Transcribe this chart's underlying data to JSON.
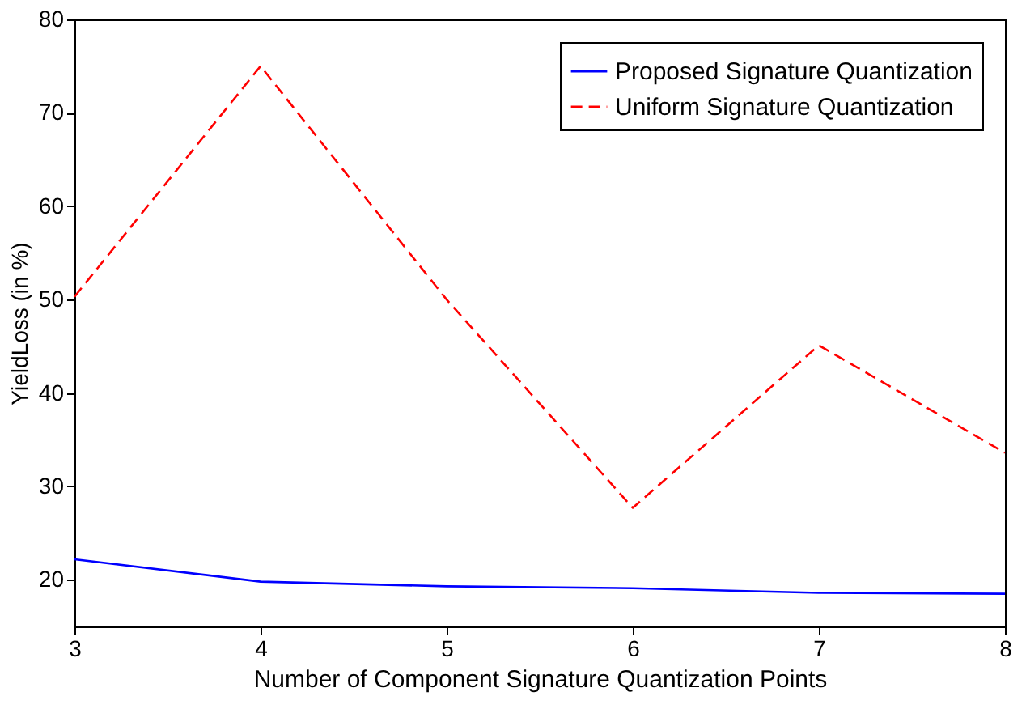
{
  "chart_data": {
    "type": "line",
    "xlabel": "Number of Component Signature Quantization Points",
    "ylabel": "YieldLoss (in %)",
    "x": [
      3,
      4,
      5,
      6,
      7,
      8
    ],
    "series": [
      {
        "name": "Proposed Signature Quantization",
        "color": "#0000ff",
        "values": [
          22.2,
          19.8,
          19.3,
          19.1,
          18.6,
          18.5
        ],
        "line_style": "solid"
      },
      {
        "name": "Uniform Signature Quantization",
        "color": "#ff0000",
        "values": [
          50.3,
          75,
          50,
          27.7,
          45.1,
          33.6
        ],
        "line_style": "dashed"
      }
    ],
    "xlim": [
      3,
      8
    ],
    "xticks": [
      3,
      4,
      5,
      6,
      7,
      8
    ],
    "ylim": [
      15,
      80
    ],
    "yticks": [
      20,
      30,
      40,
      50,
      60,
      70,
      80
    ],
    "grid": false,
    "legend": "top right",
    "marker": "none"
  }
}
